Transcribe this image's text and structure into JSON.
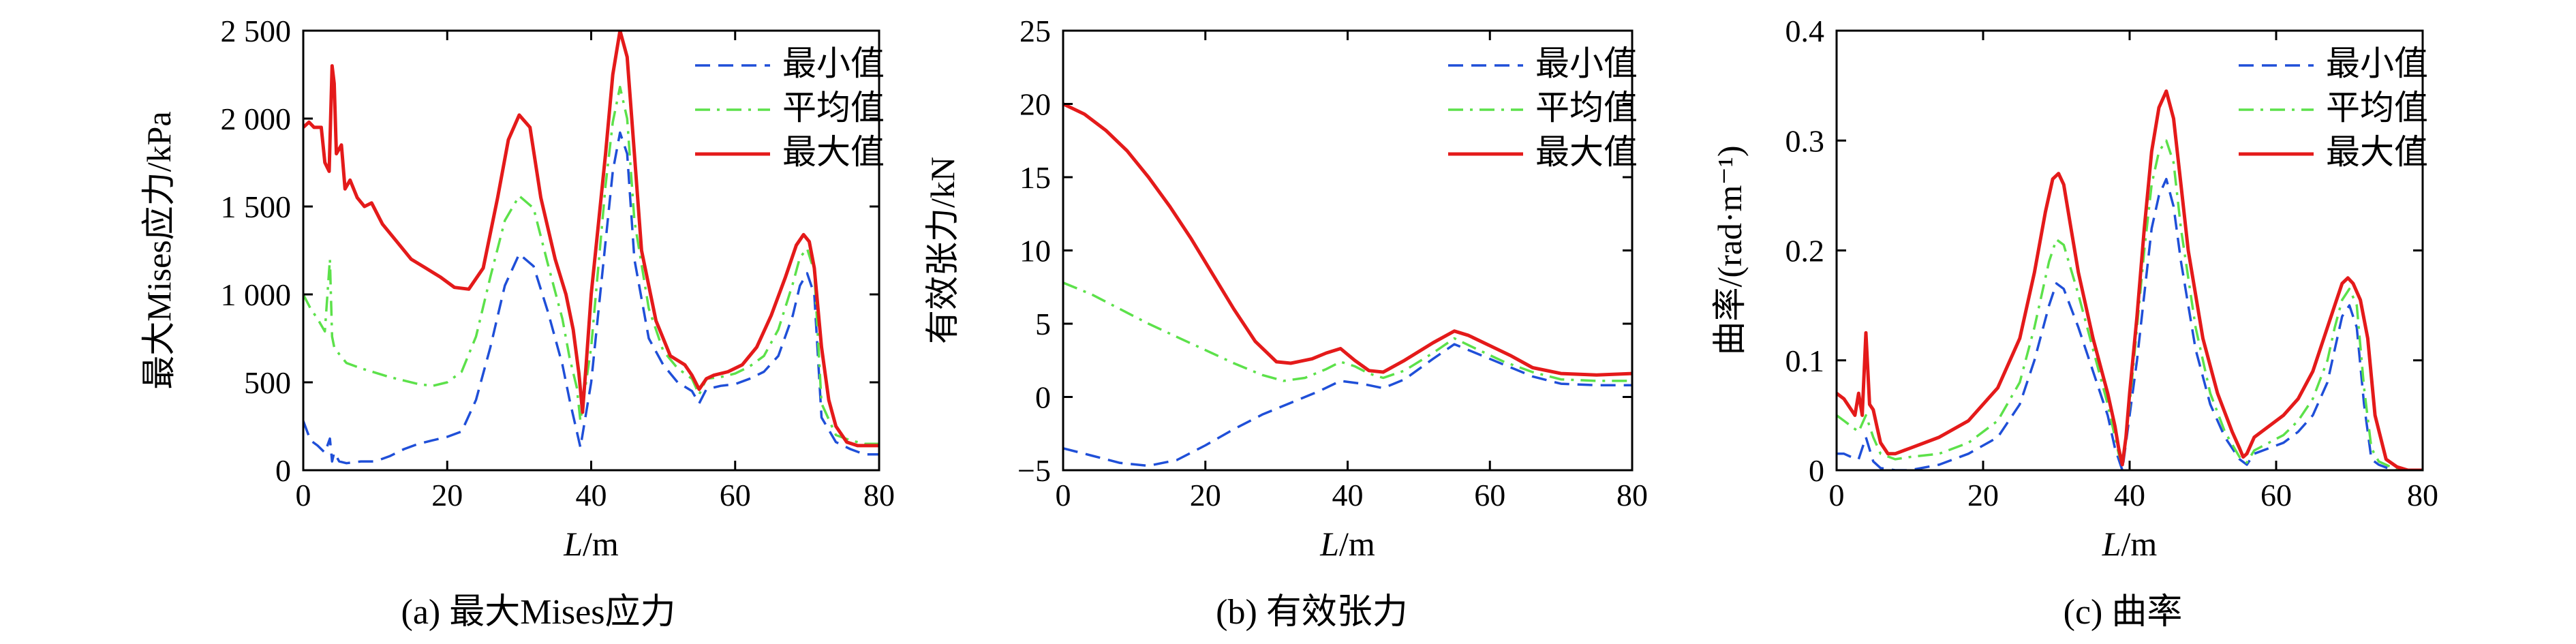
{
  "figure": {
    "captions": [
      "(a) 最大Mises应力",
      "(b) 有效张力",
      "(c) 曲率"
    ]
  },
  "chart_data": [
    {
      "type": "line",
      "title": "",
      "xlabel": "L/m",
      "ylabel": "最大Mises应力/kPa",
      "xlim": [
        0,
        80
      ],
      "ylim": [
        0,
        2500
      ],
      "xticks": [
        0,
        20,
        40,
        60,
        80
      ],
      "xtick_labels": [
        "0",
        "20",
        "40",
        "60",
        "80"
      ],
      "yticks": [
        0,
        500,
        1000,
        1500,
        2000,
        2500
      ],
      "ytick_labels": [
        "0",
        "500",
        "1 000",
        "1 500",
        "2 000",
        "2 500"
      ],
      "legend_position": "top-right",
      "grid": false,
      "series": [
        {
          "name": "最小值",
          "color": "#1f4fd8",
          "dash": "dashed",
          "x": [
            0,
            1,
            2,
            3,
            3.7,
            4,
            4.3,
            5,
            6,
            8,
            10,
            12,
            14,
            16,
            18,
            20,
            22,
            24,
            26,
            28,
            30,
            32,
            34,
            36,
            37,
            38,
            38.5,
            40,
            42,
            43,
            44,
            45,
            46,
            48,
            50,
            52,
            54,
            55,
            56,
            58,
            60,
            62,
            64,
            66,
            68,
            69,
            70,
            71,
            72,
            74,
            76,
            78,
            80
          ],
          "y": [
            280,
            170,
            140,
            100,
            180,
            50,
            100,
            50,
            40,
            50,
            50,
            80,
            120,
            150,
            170,
            190,
            220,
            400,
            700,
            1050,
            1230,
            1160,
            900,
            600,
            400,
            220,
            130,
            500,
            1300,
            1700,
            1920,
            1800,
            1200,
            750,
            600,
            500,
            450,
            380,
            460,
            480,
            490,
            520,
            560,
            650,
            880,
            1050,
            1120,
            1000,
            300,
            160,
            120,
            90,
            90
          ]
        },
        {
          "name": "平均值",
          "color": "#5ce14a",
          "dash": "dashdot",
          "x": [
            0,
            1,
            2,
            3,
            3.7,
            4,
            4.3,
            5,
            6,
            8,
            10,
            12,
            14,
            16,
            18,
            20,
            22,
            24,
            26,
            28,
            30,
            32,
            34,
            36,
            37,
            38,
            38.5,
            40,
            42,
            43,
            44,
            45,
            46,
            48,
            50,
            52,
            54,
            55,
            56,
            58,
            60,
            62,
            64,
            66,
            68,
            69,
            70,
            71,
            72,
            74,
            76,
            78,
            80
          ],
          "y": [
            1000,
            920,
            860,
            790,
            1200,
            760,
            700,
            660,
            610,
            580,
            555,
            530,
            510,
            490,
            480,
            500,
            560,
            760,
            1100,
            1420,
            1560,
            1490,
            1170,
            860,
            640,
            470,
            280,
            700,
            1620,
            1980,
            2180,
            2000,
            1420,
            920,
            680,
            580,
            520,
            430,
            520,
            530,
            550,
            590,
            650,
            800,
            1060,
            1210,
            1260,
            1130,
            380,
            200,
            170,
            150,
            150
          ]
        },
        {
          "name": "最大值",
          "color": "#e41a1a",
          "dash": "solid",
          "x": [
            0,
            0.8,
            1.5,
            2.5,
            3,
            3.6,
            4,
            4.3,
            4.6,
            5.3,
            5.8,
            6.5,
            7.5,
            8.5,
            9.5,
            11,
            13,
            15,
            17,
            19,
            21,
            23,
            25,
            27,
            28.5,
            30,
            31.5,
            33,
            35,
            36.5,
            37.5,
            38.3,
            38.8,
            39.3,
            40,
            41,
            42,
            43,
            44,
            45,
            46,
            47,
            49,
            51,
            53,
            54,
            55,
            56,
            57,
            59,
            61,
            63,
            65,
            67,
            68.5,
            69.5,
            70.3,
            71,
            72,
            73,
            74,
            75.5,
            77,
            78.5,
            80
          ],
          "y": [
            1950,
            1980,
            1950,
            1950,
            1750,
            1700,
            2300,
            2200,
            1800,
            1850,
            1600,
            1650,
            1550,
            1500,
            1520,
            1400,
            1300,
            1200,
            1150,
            1100,
            1040,
            1030,
            1150,
            1550,
            1880,
            2020,
            1950,
            1550,
            1200,
            1000,
            800,
            550,
            330,
            600,
            1000,
            1400,
            1800,
            2250,
            2500,
            2350,
            1800,
            1250,
            850,
            650,
            600,
            540,
            460,
            520,
            540,
            560,
            600,
            700,
            880,
            1100,
            1280,
            1340,
            1300,
            1150,
            700,
            400,
            250,
            160,
            140,
            140,
            140
          ]
        }
      ]
    },
    {
      "type": "line",
      "title": "",
      "xlabel": "L/m",
      "ylabel": "有效张力/kN",
      "xlim": [
        0,
        80
      ],
      "ylim": [
        -5,
        25
      ],
      "xticks": [
        0,
        20,
        40,
        60,
        80
      ],
      "xtick_labels": [
        "0",
        "20",
        "40",
        "60",
        "80"
      ],
      "yticks": [
        -5,
        0,
        5,
        10,
        15,
        20,
        25
      ],
      "ytick_labels": [
        "−5",
        "0",
        "5",
        "10",
        "15",
        "20",
        "25"
      ],
      "legend_position": "top-right",
      "grid": false,
      "series": [
        {
          "name": "最小值",
          "color": "#1f4fd8",
          "dash": "dashed",
          "x": [
            0,
            4,
            8,
            12,
            16,
            20,
            24,
            28,
            32,
            36,
            39,
            42,
            45,
            48,
            52,
            55,
            58,
            62,
            66,
            70,
            75,
            80
          ],
          "y": [
            -3.5,
            -4.0,
            -4.5,
            -4.7,
            -4.3,
            -3.3,
            -2.2,
            -1.2,
            -0.4,
            0.4,
            1.1,
            0.9,
            0.6,
            1.2,
            2.6,
            3.6,
            3.0,
            2.2,
            1.4,
            0.9,
            0.8,
            0.8
          ]
        },
        {
          "name": "平均值",
          "color": "#5ce14a",
          "dash": "dashdot",
          "x": [
            0,
            4,
            8,
            12,
            16,
            20,
            24,
            28,
            31,
            34,
            37,
            39,
            41,
            43,
            45,
            48,
            52,
            55,
            58,
            62,
            66,
            70,
            75,
            80
          ],
          "y": [
            7.8,
            7.0,
            6.0,
            5.0,
            4.1,
            3.2,
            2.3,
            1.5,
            1.1,
            1.3,
            1.9,
            2.4,
            2.1,
            1.6,
            1.3,
            1.8,
            3.0,
            4.0,
            3.3,
            2.4,
            1.7,
            1.2,
            1.1,
            1.1
          ]
        },
        {
          "name": "最大值",
          "color": "#e41a1a",
          "dash": "solid",
          "x": [
            0,
            3,
            6,
            9,
            12,
            15,
            18,
            21,
            24,
            27,
            30,
            32,
            35,
            37,
            39,
            41,
            43,
            45,
            48,
            52,
            55,
            57,
            60,
            63,
            66,
            70,
            75,
            80
          ],
          "y": [
            20.0,
            19.3,
            18.2,
            16.8,
            15.0,
            13.0,
            10.8,
            8.4,
            6.0,
            3.8,
            2.4,
            2.3,
            2.6,
            3.0,
            3.3,
            2.5,
            1.8,
            1.7,
            2.5,
            3.7,
            4.5,
            4.2,
            3.5,
            2.8,
            2.0,
            1.6,
            1.5,
            1.6
          ]
        }
      ]
    },
    {
      "type": "line",
      "title": "",
      "xlabel": "L/m",
      "ylabel": "曲率/(rad·m⁻¹)",
      "xlim": [
        0,
        80
      ],
      "ylim": [
        0,
        0.4
      ],
      "xticks": [
        0,
        20,
        40,
        60,
        80
      ],
      "xtick_labels": [
        "0",
        "20",
        "40",
        "60",
        "80"
      ],
      "yticks": [
        0,
        0.1,
        0.2,
        0.3,
        0.4
      ],
      "ytick_labels": [
        "0",
        "0.1",
        "0.2",
        "0.3",
        "0.4"
      ],
      "legend_position": "top-right",
      "grid": false,
      "series": [
        {
          "name": "最小值",
          "color": "#1f4fd8",
          "dash": "dashed",
          "x": [
            0,
            1,
            2,
            3,
            4,
            5,
            6,
            8,
            10,
            14,
            18,
            22,
            25,
            27,
            29,
            30,
            31,
            33,
            35,
            37,
            38,
            38.5,
            39,
            40,
            41,
            42,
            43,
            44,
            45,
            46,
            47,
            49,
            51,
            53,
            55,
            56,
            57,
            59,
            61,
            63,
            65,
            67,
            68,
            69,
            70,
            71,
            72,
            73,
            74,
            76,
            78,
            80
          ],
          "y": [
            0.015,
            0.015,
            0.012,
            0.01,
            0.03,
            0.008,
            0.002,
            0.0,
            0.0,
            0.005,
            0.015,
            0.03,
            0.06,
            0.1,
            0.15,
            0.17,
            0.165,
            0.13,
            0.09,
            0.05,
            0.02,
            0.01,
            0.0,
            0.05,
            0.1,
            0.16,
            0.22,
            0.25,
            0.265,
            0.24,
            0.19,
            0.11,
            0.06,
            0.03,
            0.01,
            0.005,
            0.015,
            0.02,
            0.025,
            0.035,
            0.05,
            0.08,
            0.11,
            0.14,
            0.15,
            0.13,
            0.06,
            0.01,
            0.005,
            0.0,
            0.0,
            0.0
          ]
        },
        {
          "name": "平均值",
          "color": "#5ce14a",
          "dash": "dashdot",
          "x": [
            0,
            1,
            2,
            3,
            4,
            5,
            6,
            8,
            10,
            14,
            18,
            22,
            25,
            27,
            29,
            30,
            31,
            33,
            35,
            37,
            38,
            38.5,
            39,
            40,
            41,
            42,
            43,
            44,
            45,
            46,
            47,
            49,
            51,
            53,
            55,
            56,
            57,
            59,
            61,
            63,
            65,
            67,
            68,
            69,
            70,
            71,
            72,
            73,
            74,
            76,
            78,
            80
          ],
          "y": [
            0.05,
            0.045,
            0.04,
            0.035,
            0.05,
            0.03,
            0.015,
            0.01,
            0.012,
            0.015,
            0.025,
            0.045,
            0.08,
            0.13,
            0.19,
            0.21,
            0.205,
            0.16,
            0.11,
            0.06,
            0.03,
            0.015,
            0.005,
            0.06,
            0.13,
            0.2,
            0.26,
            0.29,
            0.3,
            0.28,
            0.22,
            0.13,
            0.07,
            0.035,
            0.012,
            0.007,
            0.018,
            0.025,
            0.032,
            0.045,
            0.065,
            0.1,
            0.13,
            0.155,
            0.165,
            0.15,
            0.075,
            0.02,
            0.008,
            0.002,
            0.0,
            0.0
          ]
        },
        {
          "name": "最大值",
          "color": "#e41a1a",
          "dash": "solid",
          "x": [
            0,
            1,
            2,
            2.5,
            3,
            3.5,
            4,
            4.5,
            5,
            5.5,
            6,
            7,
            8,
            10,
            14,
            18,
            22,
            25,
            27,
            28.5,
            29.5,
            30.3,
            31,
            32,
            33,
            35,
            37,
            38,
            38.5,
            39,
            39.5,
            40,
            41,
            42,
            43,
            44,
            45,
            46,
            47,
            48,
            50,
            52,
            54,
            55,
            55.5,
            56,
            57,
            59,
            61,
            63,
            65,
            66.5,
            68,
            69,
            69.8,
            70.5,
            71.5,
            72.5,
            73.5,
            75,
            76.5,
            78,
            80
          ],
          "y": [
            0.07,
            0.065,
            0.055,
            0.05,
            0.07,
            0.05,
            0.125,
            0.06,
            0.055,
            0.04,
            0.025,
            0.015,
            0.015,
            0.02,
            0.03,
            0.045,
            0.075,
            0.12,
            0.18,
            0.235,
            0.265,
            0.27,
            0.26,
            0.22,
            0.18,
            0.12,
            0.07,
            0.04,
            0.02,
            0.005,
            0.03,
            0.07,
            0.14,
            0.22,
            0.29,
            0.33,
            0.345,
            0.32,
            0.26,
            0.2,
            0.12,
            0.07,
            0.035,
            0.02,
            0.012,
            0.015,
            0.03,
            0.04,
            0.05,
            0.065,
            0.09,
            0.12,
            0.15,
            0.17,
            0.175,
            0.17,
            0.155,
            0.12,
            0.05,
            0.01,
            0.003,
            0.0,
            0.0
          ]
        }
      ]
    }
  ]
}
